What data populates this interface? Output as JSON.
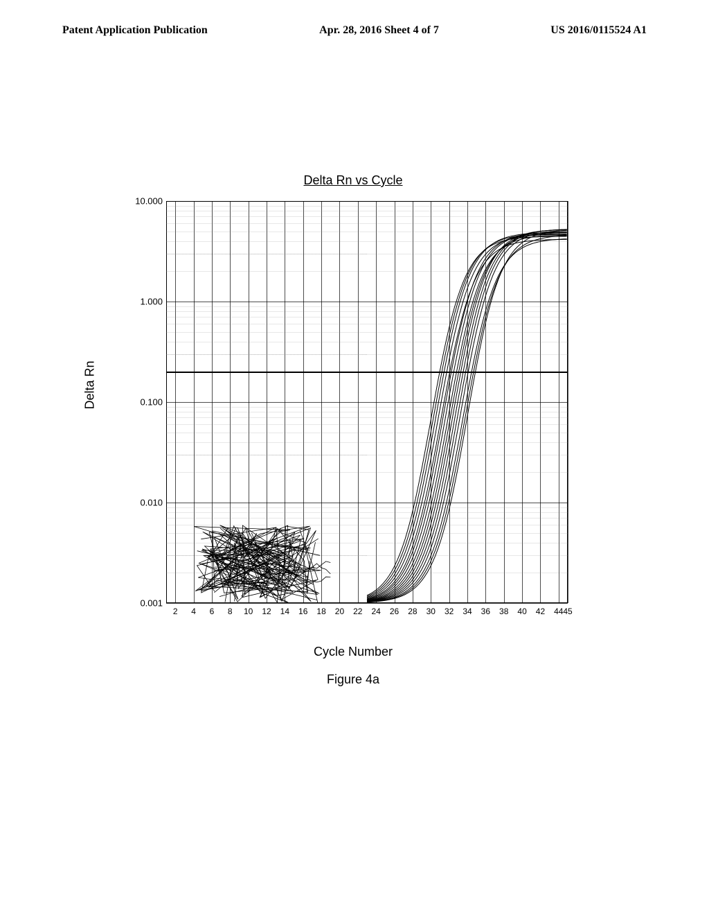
{
  "header": {
    "left": "Patent Application Publication",
    "center": "Apr. 28, 2016  Sheet 4 of 7",
    "right": "US 2016/0115524 A1"
  },
  "chart": {
    "type": "line",
    "title": "Delta Rn vs Cycle",
    "x_axis_label": "Cycle Number",
    "y_axis_label": "Delta Rn",
    "figure_label": "Figure 4a",
    "x_ticks": [
      2,
      4,
      6,
      8,
      10,
      12,
      14,
      16,
      18,
      20,
      22,
      24,
      26,
      28,
      30,
      32,
      34,
      36,
      38,
      40,
      42,
      44,
      45
    ],
    "y_ticks_major": [
      0.001,
      0.01,
      0.1,
      1.0,
      10.0
    ],
    "y_scale": "log",
    "xlim": [
      1,
      45
    ],
    "ylim": [
      0.001,
      10.0
    ],
    "threshold_y": 0.2,
    "grid_color": "#000000",
    "background_color": "#ffffff",
    "curve_color": "#000000",
    "line_width": 1,
    "font_size_title": 18,
    "font_size_label": 18,
    "font_size_tick": 12,
    "sigmoid_curves": {
      "count": 16,
      "x_start": 23,
      "x_end": 45,
      "ct_range": [
        26,
        30
      ],
      "y_plateau_range": [
        4.0,
        5.5
      ],
      "y_start": 0.001
    },
    "noise_region": {
      "x_range": [
        4,
        18
      ],
      "y_range": [
        0.001,
        0.006
      ],
      "density": "high",
      "scribble_count": 30
    }
  }
}
